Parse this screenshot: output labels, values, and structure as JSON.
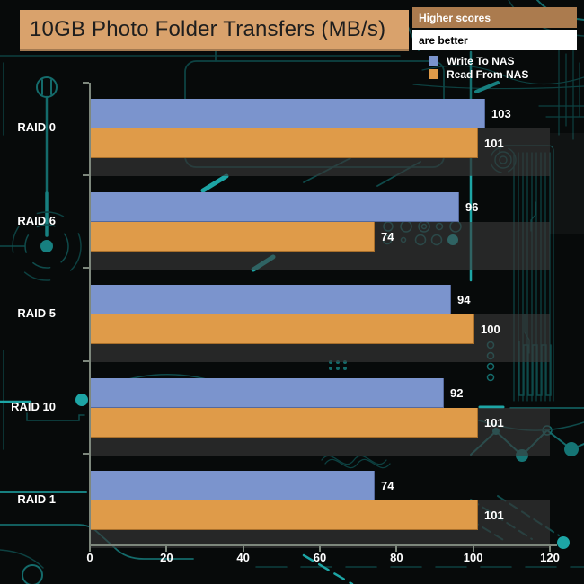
{
  "title": "10GB Photo Folder Transfers (MB/s)",
  "note": {
    "line1": "Higher scores",
    "line2": "are better"
  },
  "colors": {
    "title_box_bg": "#d9a26c",
    "note1_bg": "#ab7b4e",
    "note2_bg": "#ffffff",
    "write_bar": "#7b94cd",
    "write_bar_edge": "#55699c",
    "read_bar": "#df9b49",
    "read_bar_edge": "#a9702c",
    "axis": "#7d877c",
    "background": "#070a0a",
    "trace_teal": "#146b6b"
  },
  "chart_data": {
    "type": "bar",
    "orientation": "horizontal",
    "title": "10GB Photo Folder Transfers (MB/s)",
    "categories": [
      "RAID 0",
      "RAID 6",
      "RAID 5",
      "RAID 10",
      "RAID 1"
    ],
    "series": [
      {
        "name": "Write To NAS",
        "color": "#7b94cd",
        "values": [
          103,
          96,
          94,
          92,
          74
        ]
      },
      {
        "name": "Read From NAS",
        "color": "#df9b49",
        "values": [
          101,
          74,
          100,
          101,
          101
        ]
      }
    ],
    "x_ticks": [
      0,
      20,
      40,
      60,
      80,
      100,
      120
    ],
    "xlim": [
      0,
      120
    ],
    "xlabel": "",
    "ylabel": "",
    "grid": false,
    "value_labels": true,
    "legend_position": "top-right"
  }
}
